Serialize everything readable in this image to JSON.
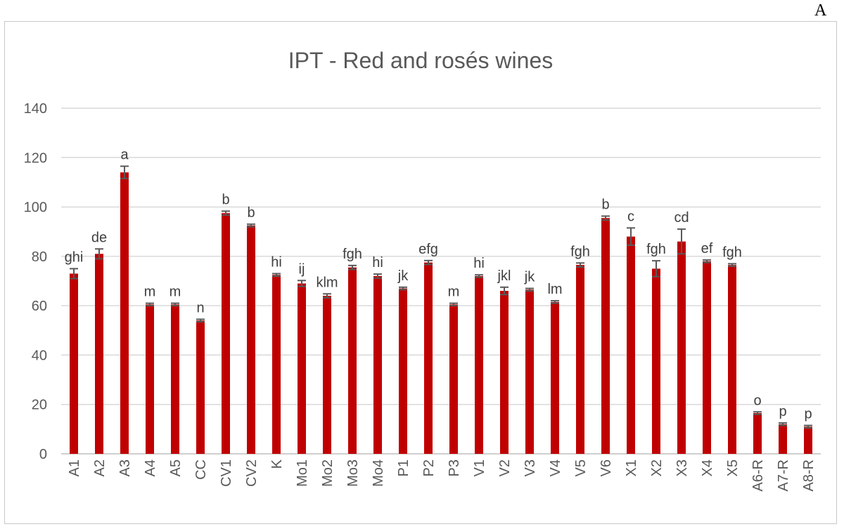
{
  "panel_label": "A",
  "chart_data": {
    "type": "bar",
    "title": "IPT - Red and rosés wines",
    "xlabel": "",
    "ylabel": "",
    "ylim": [
      0,
      140
    ],
    "yticks": [
      0,
      20,
      40,
      60,
      80,
      100,
      120,
      140
    ],
    "grid": true,
    "legend": "none",
    "bar_color": "#c00000",
    "errorbar_color": "#595959",
    "gridline_color": "#d9d9d9",
    "tick_label_color": "#595959",
    "categories": [
      "A1",
      "A2",
      "A3",
      "A4",
      "A5",
      "CC",
      "CV1",
      "CV2",
      "K",
      "Mo1",
      "Mo2",
      "Mo3",
      "Mo4",
      "P1",
      "P2",
      "P3",
      "V1",
      "V2",
      "V3",
      "V4",
      "V5",
      "V6",
      "X1",
      "X2",
      "X3",
      "X4",
      "X5",
      "A6-R",
      "A7-R",
      "A8-R"
    ],
    "values": [
      73,
      81,
      114,
      60.5,
      60.5,
      54,
      97.5,
      92.5,
      72.5,
      69,
      64,
      75.5,
      72,
      67,
      77.5,
      60.5,
      72,
      66,
      66.5,
      61.5,
      76.5,
      95.5,
      88,
      75,
      86,
      78,
      76.5,
      16.5,
      12,
      11
    ],
    "errors": [
      2,
      2,
      2.5,
      0.5,
      0.5,
      0.5,
      0.8,
      0.5,
      0.5,
      1.2,
      0.8,
      0.8,
      0.8,
      0.5,
      0.8,
      0.5,
      0.5,
      1.5,
      0.5,
      0.5,
      0.8,
      0.8,
      3.5,
      3.2,
      5,
      0.5,
      0.5,
      0.5,
      0.5,
      0.5
    ],
    "significance_letters": [
      "ghi",
      "de",
      "a",
      "m",
      "m",
      "n",
      "b",
      "b",
      "hi",
      "ij",
      "klm",
      "fgh",
      "hi",
      "jk",
      "efg",
      "m",
      "hi",
      "jkl",
      "jk",
      "lm",
      "fgh",
      "b",
      "c",
      "fgh",
      "cd",
      "ef",
      "fgh",
      "o",
      "p",
      "p"
    ]
  }
}
